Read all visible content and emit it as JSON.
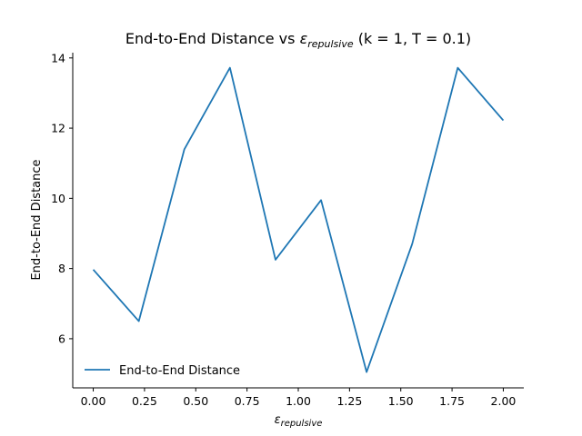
{
  "chart_data": {
    "type": "line",
    "title": {
      "prefix": "End-to-End Distance vs ",
      "symbol": "ε",
      "symbol_sub": "repulsive",
      "suffix": " (k = 1, T = 0.1)"
    },
    "xlabel": {
      "symbol": "ε",
      "sub": "repulsive"
    },
    "ylabel": "End-to-End Distance",
    "xlim": [
      -0.1,
      2.1
    ],
    "ylim": [
      4.6,
      14.15
    ],
    "xticks": [
      0.0,
      0.25,
      0.5,
      0.75,
      1.0,
      1.25,
      1.5,
      1.75,
      2.0
    ],
    "xtick_labels": [
      "0.00",
      "0.25",
      "0.50",
      "0.75",
      "1.00",
      "1.25",
      "1.50",
      "1.75",
      "2.00"
    ],
    "yticks": [
      6,
      8,
      10,
      12,
      14
    ],
    "ytick_labels": [
      "6",
      "8",
      "10",
      "12",
      "14"
    ],
    "grid": false,
    "legend_position": "lower-left",
    "series": [
      {
        "name": "End-to-End Distance",
        "color": "#1f77b4",
        "x": [
          0.0,
          0.2222,
          0.4444,
          0.6667,
          0.8889,
          1.1111,
          1.3333,
          1.5556,
          1.7778,
          2.0
        ],
        "y": [
          7.97,
          6.5,
          11.4,
          13.72,
          8.25,
          9.95,
          5.05,
          8.7,
          13.72,
          12.22
        ]
      }
    ]
  }
}
